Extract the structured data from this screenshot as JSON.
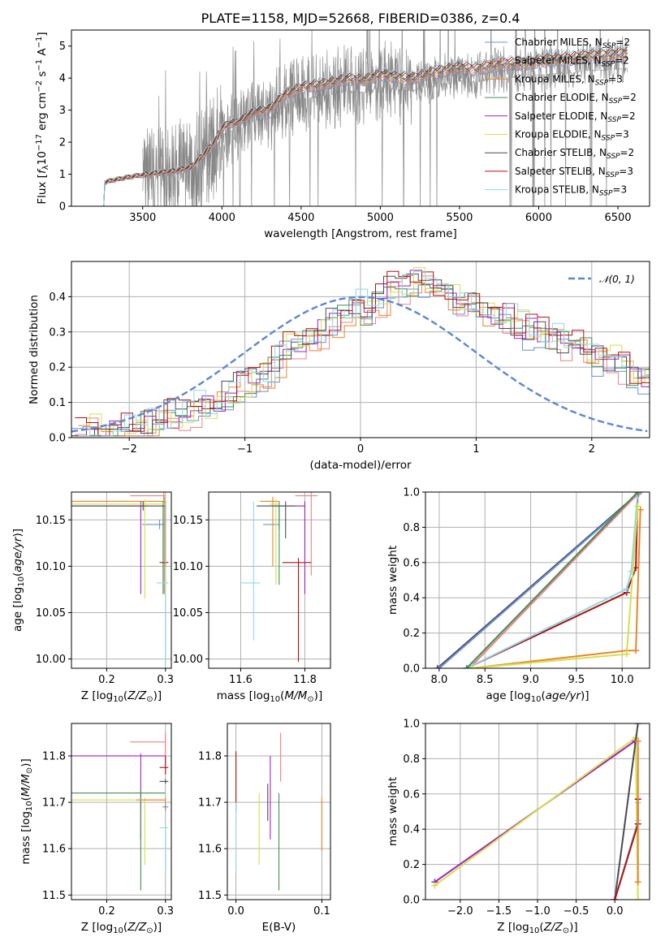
{
  "colors": {
    "Chabrier MILES": "#6a8fd8",
    "Salpeter MILES": "#f08080",
    "Kroupa MILES": "#e6862a",
    "Chabrier ELODIE": "#3f8f57",
    "Salpeter ELODIE": "#a020c0",
    "Kroupa ELODIE": "#d4e04a",
    "Chabrier STELIB": "#4a4a55",
    "Salpeter STELIB": "#b01010",
    "Kroupa STELIB": "#8fd8e6",
    "data": "#808080",
    "grid": "#b0b0b0"
  },
  "chart_data": [
    {
      "id": "spectrum",
      "type": "line",
      "title": "PLATE=1158, MJD=52668, FIBERID=0386, z=0.4",
      "xlabel": "wavelength [Angstrom, rest frame]",
      "ylabel": "Flux [fλ10⁻¹⁷ erg cm⁻² s⁻¹ A⁻¹]",
      "xlim": [
        3050,
        6700
      ],
      "ylim": [
        0,
        5.5
      ],
      "xticks": [
        "3500",
        "4000",
        "4500",
        "5000",
        "5500",
        "6000",
        "6500"
      ],
      "yticks": [
        "0",
        "1",
        "2",
        "3",
        "4",
        "5"
      ],
      "grid": false,
      "legend_position": "upper right",
      "continuum_points": [
        [
          3240,
          0.72
        ],
        [
          3300,
          0.8
        ],
        [
          3400,
          0.9
        ],
        [
          3500,
          0.98
        ],
        [
          3600,
          1.05
        ],
        [
          3700,
          1.1
        ],
        [
          3800,
          1.22
        ],
        [
          3850,
          1.45
        ],
        [
          3900,
          1.7
        ],
        [
          3960,
          2.05
        ],
        [
          4000,
          2.45
        ],
        [
          4050,
          2.6
        ],
        [
          4100,
          2.62
        ],
        [
          4200,
          2.95
        ],
        [
          4300,
          3.05
        ],
        [
          4400,
          3.5
        ],
        [
          4500,
          3.72
        ],
        [
          4600,
          3.8
        ],
        [
          4700,
          3.88
        ],
        [
          4800,
          4.0
        ],
        [
          4900,
          3.95
        ],
        [
          5000,
          4.12
        ],
        [
          5100,
          4.05
        ],
        [
          5200,
          4.0
        ],
        [
          5300,
          4.15
        ],
        [
          5400,
          4.25
        ],
        [
          5500,
          4.35
        ],
        [
          5600,
          4.3
        ],
        [
          5700,
          4.4
        ],
        [
          5800,
          4.48
        ],
        [
          5900,
          4.45
        ],
        [
          6000,
          4.55
        ],
        [
          6100,
          4.6
        ],
        [
          6200,
          4.62
        ],
        [
          6300,
          4.7
        ],
        [
          6400,
          4.72
        ],
        [
          6500,
          4.75
        ],
        [
          6560,
          4.8
        ]
      ],
      "model_x_range": [
        3230,
        6560
      ],
      "data_x_range": [
        3500,
        6560
      ],
      "legend": [
        {
          "label": "Chabrier MILES, N",
          "sub": "SSP",
          "suffix": "=2"
        },
        {
          "label": "Salpeter MILES, N",
          "sub": "SSP",
          "suffix": "=2"
        },
        {
          "label": "Kroupa MILES, N",
          "sub": "SSP",
          "suffix": "=3"
        },
        {
          "label": "Chabrier ELODIE, N",
          "sub": "SSP",
          "suffix": "=2"
        },
        {
          "label": "Salpeter ELODIE, N",
          "sub": "SSP",
          "suffix": "=2"
        },
        {
          "label": "Kroupa ELODIE, N",
          "sub": "SSP",
          "suffix": "=3"
        },
        {
          "label": "Chabrier STELIB, N",
          "sub": "SSP",
          "suffix": "=2"
        },
        {
          "label": "Salpeter STELIB, N",
          "sub": "SSP",
          "suffix": "=3"
        },
        {
          "label": "Kroupa STELIB, N",
          "sub": "SSP",
          "suffix": "=3"
        }
      ]
    },
    {
      "id": "residuals",
      "type": "histogram",
      "xlabel": "(data-model)/error",
      "ylabel": "Normed distribution",
      "xlim": [
        -2.5,
        2.5
      ],
      "ylim": [
        0,
        0.5
      ],
      "xticks": [
        "−2",
        "−1",
        "0",
        "1",
        "2"
      ],
      "yticks": [
        "0.0",
        "0.1",
        "0.2",
        "0.3",
        "0.4"
      ],
      "grid": true,
      "legend": "𝒩(0, 1)",
      "bin_width": 0.1,
      "bin_heights": [
        0.02,
        0.03,
        0.02,
        0.02,
        0.03,
        0.04,
        0.04,
        0.05,
        0.06,
        0.07,
        0.08,
        0.08,
        0.1,
        0.12,
        0.15,
        0.15,
        0.18,
        0.21,
        0.25,
        0.27,
        0.28,
        0.3,
        0.32,
        0.35,
        0.38,
        0.36,
        0.39,
        0.42,
        0.43,
        0.44,
        0.45,
        0.43,
        0.41,
        0.39,
        0.38,
        0.36,
        0.34,
        0.33,
        0.32,
        0.3,
        0.29,
        0.28,
        0.27,
        0.26,
        0.25,
        0.23,
        0.22,
        0.2,
        0.18,
        0.17,
        0.16,
        0.15,
        0.14,
        0.13,
        0.13,
        0.12,
        0.11,
        0.1,
        0.09,
        0.08,
        0.07,
        0.07,
        0.06,
        0.06,
        0.05,
        0.05,
        0.04
      ]
    },
    {
      "id": "age-vs-Z",
      "type": "errorbar",
      "xlabel": "Z [log10(Z/Z⊙)]",
      "ylabel": "age [log10(age/yr)]",
      "xlim": [
        0.14,
        0.31
      ],
      "ylim": [
        9.99,
        10.18
      ],
      "xticks": [
        "0.2",
        "0.3"
      ],
      "yticks": [
        "10.00",
        "10.05",
        "10.10",
        "10.15"
      ],
      "grid": true
    },
    {
      "id": "age-vs-mass",
      "type": "errorbar",
      "xlabel": "mass [log10(M/M⊙)]",
      "ylabel": "",
      "xlim": [
        11.5,
        11.88
      ],
      "ylim": [
        9.99,
        10.18
      ],
      "xticks": [
        "11.6",
        "11.8"
      ],
      "yticks": [
        "10.00",
        "10.05",
        "10.10",
        "10.15"
      ],
      "grid": true
    },
    {
      "id": "massweight-vs-age",
      "type": "line",
      "xlabel": "age [log10(age/yr)]",
      "ylabel": "mass weight",
      "xlim": [
        7.85,
        10.3
      ],
      "ylim": [
        0,
        1
      ],
      "xticks": [
        "8.0",
        "8.5",
        "9.0",
        "9.5",
        "10.0"
      ],
      "yticks": [
        "0.0",
        "0.2",
        "0.4",
        "0.6",
        "0.8",
        "1.0"
      ],
      "grid": true
    },
    {
      "id": "mass-vs-Z",
      "type": "errorbar",
      "xlabel": "Z [log10(Z/Z⊙)]",
      "ylabel": "mass [log10(M/M⊙)]",
      "xlim": [
        0.14,
        0.31
      ],
      "ylim": [
        11.49,
        11.87
      ],
      "xticks": [
        "0.2",
        "0.3"
      ],
      "yticks": [
        "11.5",
        "11.6",
        "11.7",
        "11.8"
      ],
      "grid": true
    },
    {
      "id": "mass-vs-EBV",
      "type": "errorbar",
      "xlabel": "E(B-V)",
      "ylabel": "",
      "xlim": [
        -0.01,
        0.11
      ],
      "ylim": [
        11.49,
        11.87
      ],
      "xticks": [
        "0.0",
        "0.1"
      ],
      "yticks": [
        "11.5",
        "11.6",
        "11.7",
        "11.8"
      ],
      "grid": true
    },
    {
      "id": "massweight-vs-Z",
      "type": "line",
      "xlabel": "Z [log10(Z/Z⊙)]",
      "ylabel": "mass weight",
      "xlim": [
        -2.45,
        0.45
      ],
      "ylim": [
        0,
        1
      ],
      "xticks": [
        "−2.0",
        "−1.5",
        "−1.0",
        "−0.5",
        "0.0"
      ],
      "yticks": [
        "0.0",
        "0.2",
        "0.4",
        "0.6",
        "0.8",
        "1.0"
      ],
      "grid": true
    }
  ],
  "series_points": {
    "age_Z": [
      {
        "c": "Chabrier MILES",
        "x": 0.29,
        "y": 10.145,
        "xl": 0.26,
        "xh": 0.3
      },
      {
        "c": "Salpeter MILES",
        "x": 0.297,
        "y": 10.176,
        "xl": 0.24,
        "xh": 0.3
      },
      {
        "c": "Kroupa MILES",
        "x": 0.298,
        "y": 10.17,
        "xl": 0.14,
        "xh": 0.3,
        "yl": 10.07
      },
      {
        "c": "Chabrier ELODIE",
        "x": 0.296,
        "y": 10.165,
        "xl": 0.14,
        "xh": 0.3,
        "yl": 10.07
      },
      {
        "c": "Salpeter ELODIE",
        "x": 0.258,
        "y": 10.165,
        "xl": 0.14,
        "xh": 0.27,
        "yl": 10.07
      },
      {
        "c": "Kroupa ELODIE",
        "x": 0.265,
        "y": 10.167,
        "xl": 0.14,
        "xh": 0.3,
        "yl": 10.065
      },
      {
        "c": "Chabrier STELIB",
        "x": 0.262,
        "y": 10.165,
        "xl": 0.14,
        "xh": 0.3
      },
      {
        "c": "Salpeter STELIB",
        "x": 0.3,
        "y": 10.104,
        "xl": 0.29,
        "xh": 0.305,
        "yh": 10.17
      },
      {
        "c": "Kroupa STELIB",
        "x": 0.3,
        "y": 10.082,
        "xl": 0.285,
        "xh": 0.305,
        "yl": 9.99,
        "yh": 10.17
      }
    ],
    "age_mass": [
      {
        "c": "Chabrier MILES",
        "x": 11.72,
        "y": 10.145,
        "xl": 11.67,
        "xh": 11.72,
        "yh": 10.165
      },
      {
        "c": "Salpeter MILES",
        "x": 11.82,
        "y": 10.176,
        "xl": 11.77,
        "xh": 11.84,
        "yl": 10.09
      },
      {
        "c": "Kroupa MILES",
        "x": 11.7,
        "y": 10.17,
        "xl": 11.66,
        "xh": 11.72,
        "yl": 10.1
      },
      {
        "c": "Chabrier ELODIE",
        "x": 11.72,
        "y": 10.165,
        "xl": 11.65,
        "xh": 11.8,
        "yl": 10.08
      },
      {
        "c": "Salpeter ELODIE",
        "x": 11.8,
        "y": 10.165,
        "xl": 11.7,
        "xh": 11.8,
        "yl": 10.07
      },
      {
        "c": "Kroupa ELODIE",
        "x": 11.71,
        "y": 10.167,
        "xl": 11.69,
        "xh": 11.72,
        "yl": 10.08
      },
      {
        "c": "Chabrier STELIB",
        "x": 11.74,
        "y": 10.165,
        "xl": 11.65,
        "xh": 11.77,
        "yl": 10.13
      },
      {
        "c": "Salpeter STELIB",
        "x": 11.78,
        "y": 10.104,
        "xl": 11.73,
        "xh": 11.82,
        "yl": 9.997
      },
      {
        "c": "Kroupa STELIB",
        "x": 11.64,
        "y": 10.082,
        "xl": 11.6,
        "xh": 11.66,
        "yl": 10.02,
        "yh": 10.17
      }
    ],
    "mass_Z": [
      {
        "c": "Salpeter MILES",
        "x": 0.3,
        "y": 11.83,
        "xl": 0.24,
        "xh": 0.3,
        "yl": 11.78,
        "yh": 11.85
      },
      {
        "c": "Salpeter ELODIE",
        "x": 0.258,
        "y": 11.8,
        "xl": 0.14,
        "xh": 0.3,
        "yl": 11.62
      },
      {
        "c": "Salpeter STELIB",
        "x": 0.3,
        "y": 11.775,
        "xl": 0.29,
        "xh": 0.305,
        "yl": 11.76,
        "yh": 11.8
      },
      {
        "c": "Chabrier STELIB",
        "x": 0.3,
        "y": 11.745,
        "xl": 0.29,
        "xh": 0.305
      },
      {
        "c": "Chabrier ELODIE",
        "x": 0.258,
        "y": 11.72,
        "xl": 0.14,
        "xh": 0.3,
        "yl": 11.51
      },
      {
        "c": "Kroupa ELODIE",
        "x": 0.265,
        "y": 11.705,
        "xl": 0.14,
        "xh": 0.3,
        "yl": 11.565
      },
      {
        "c": "Kroupa MILES",
        "x": 0.3,
        "y": 11.705,
        "xl": 0.25,
        "xh": 0.3,
        "yl": 11.68
      },
      {
        "c": "Kroupa STELIB",
        "x": 0.3,
        "y": 11.645,
        "xl": 0.29,
        "xh": 0.305,
        "yl": 11.55
      },
      {
        "c": "Chabrier MILES",
        "x": 0.3,
        "y": 11.69,
        "xl": 0.295,
        "xh": 0.305
      }
    ],
    "mass_EBV": [
      {
        "c": "Salpeter STELIB",
        "x": 0.0,
        "y": 11.76,
        "yl": 11.68,
        "yh": 11.81
      },
      {
        "c": "Kroupa STELIB",
        "x": 0.0,
        "y": 11.63,
        "yl": 11.55,
        "yh": 11.7
      },
      {
        "c": "Kroupa ELODIE",
        "x": 0.027,
        "y": 11.66,
        "yl": 11.565,
        "yh": 11.72
      },
      {
        "c": "Chabrier STELIB",
        "x": 0.037,
        "y": 11.7,
        "yl": 11.66,
        "yh": 11.74
      },
      {
        "c": "Salpeter ELODIE",
        "x": 0.04,
        "y": 11.7,
        "yl": 11.62,
        "yh": 11.8
      },
      {
        "c": "Chabrier ELODIE",
        "x": 0.05,
        "y": 11.6,
        "yl": 11.51,
        "yh": 11.72
      },
      {
        "c": "Salpeter MILES",
        "x": 0.052,
        "y": 11.79,
        "yl": 11.745,
        "yh": 11.85
      },
      {
        "c": "Kroupa MILES",
        "x": 0.1,
        "y": 11.65,
        "yl": 11.595,
        "yh": 11.71
      }
    ],
    "mw_age": [
      {
        "c": "Chabrier STELIB",
        "pts": [
          [
            7.98,
            0.0
          ],
          [
            10.19,
            1.0
          ]
        ]
      },
      {
        "c": "Chabrier MILES",
        "pts": [
          [
            8.0,
            0.0
          ],
          [
            10.18,
            0.99
          ]
        ]
      },
      {
        "c": "Salpeter MILES",
        "pts": [
          [
            8.33,
            0.0
          ],
          [
            10.19,
            1.0
          ]
        ]
      },
      {
        "c": "Salpeter STELIB",
        "pts": [
          [
            8.3,
            0.0
          ],
          [
            10.05,
            0.43
          ],
          [
            10.15,
            0.57
          ],
          [
            10.17,
            1.0
          ]
        ]
      },
      {
        "c": "Kroupa STELIB",
        "pts": [
          [
            8.3,
            0.0
          ],
          [
            10.05,
            0.45
          ],
          [
            10.1,
            0.55
          ],
          [
            10.17,
            1.0
          ]
        ]
      },
      {
        "c": "Kroupa MILES",
        "pts": [
          [
            8.35,
            0.0
          ],
          [
            10.05,
            0.1
          ],
          [
            10.15,
            0.1
          ],
          [
            10.2,
            0.9
          ]
        ]
      },
      {
        "c": "Kroupa ELODIE",
        "pts": [
          [
            8.35,
            0.0
          ],
          [
            10.05,
            0.08
          ],
          [
            10.17,
            0.92
          ]
        ]
      },
      {
        "c": "Chabrier ELODIE",
        "pts": [
          [
            8.3,
            0.0
          ],
          [
            10.17,
            1.0
          ]
        ]
      }
    ],
    "mw_Z": [
      {
        "c": "Salpeter ELODIE",
        "pts": [
          [
            -2.33,
            0.1
          ],
          [
            0.26,
            0.9
          ]
        ]
      },
      {
        "c": "Kroupa ELODIE",
        "pts": [
          [
            -2.33,
            0.08
          ],
          [
            0.27,
            0.92
          ],
          [
            0.3,
            0.0
          ]
        ]
      },
      {
        "c": "Chabrier STELIB",
        "pts": [
          [
            0.0,
            0.0
          ],
          [
            0.3,
            1.0
          ]
        ]
      },
      {
        "c": "Kroupa STELIB",
        "pts": [
          [
            0.0,
            0.0
          ],
          [
            0.3,
            0.45
          ],
          [
            0.3,
            0.55
          ]
        ]
      },
      {
        "c": "Salpeter STELIB",
        "pts": [
          [
            0.0,
            0.0
          ],
          [
            0.3,
            0.43
          ],
          [
            0.3,
            0.57
          ]
        ]
      },
      {
        "c": "Kroupa MILES",
        "pts": [
          [
            0.3,
            0.1
          ],
          [
            0.3,
            0.9
          ]
        ]
      }
    ]
  }
}
